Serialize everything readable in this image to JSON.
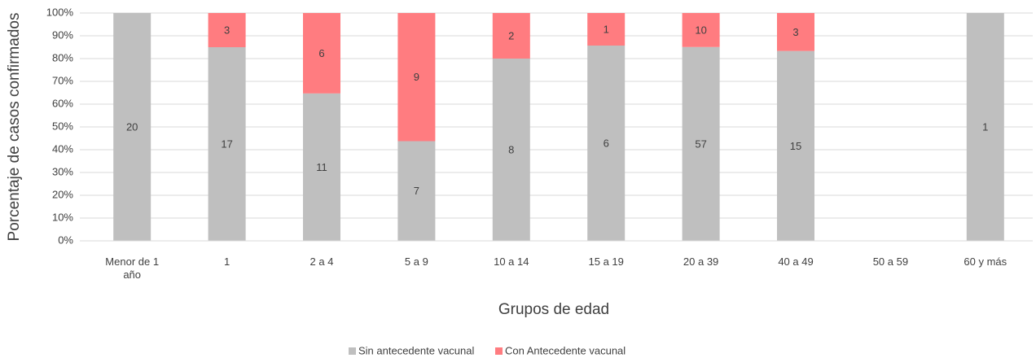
{
  "chart_data": {
    "type": "bar",
    "stacking": "percent",
    "y_label": "Porcentaje de casos confirmados",
    "x_label": "Grupos de edad",
    "categories": [
      "Menor de 1 año",
      "1",
      "2 a 4",
      "5 a 9",
      "10 a 14",
      "15 a 19",
      "20 a 39",
      "40 a 49",
      "50 a 59",
      "60 y más"
    ],
    "series": [
      {
        "name": "Sin antecedente vacunal",
        "color": "#bfbfbf",
        "values": [
          20,
          17,
          11,
          7,
          8,
          6,
          57,
          15,
          null,
          1
        ]
      },
      {
        "name": "Con Antecedente vacunal",
        "color": "#ff7c80",
        "values": [
          null,
          3,
          6,
          9,
          2,
          1,
          10,
          3,
          null,
          null
        ]
      }
    ],
    "ylim": [
      0,
      100
    ],
    "yticks": [
      {
        "value": 0,
        "label": "0%"
      },
      {
        "value": 10,
        "label": "10%"
      },
      {
        "value": 20,
        "label": "20%"
      },
      {
        "value": 30,
        "label": "30%"
      },
      {
        "value": 40,
        "label": "40%"
      },
      {
        "value": 50,
        "label": "50%"
      },
      {
        "value": 60,
        "label": "60%"
      },
      {
        "value": 70,
        "label": "70%"
      },
      {
        "value": 80,
        "label": "80%"
      },
      {
        "value": 90,
        "label": "90%"
      },
      {
        "value": 100,
        "label": "100%"
      }
    ],
    "grid": true,
    "legend": "bottom"
  }
}
